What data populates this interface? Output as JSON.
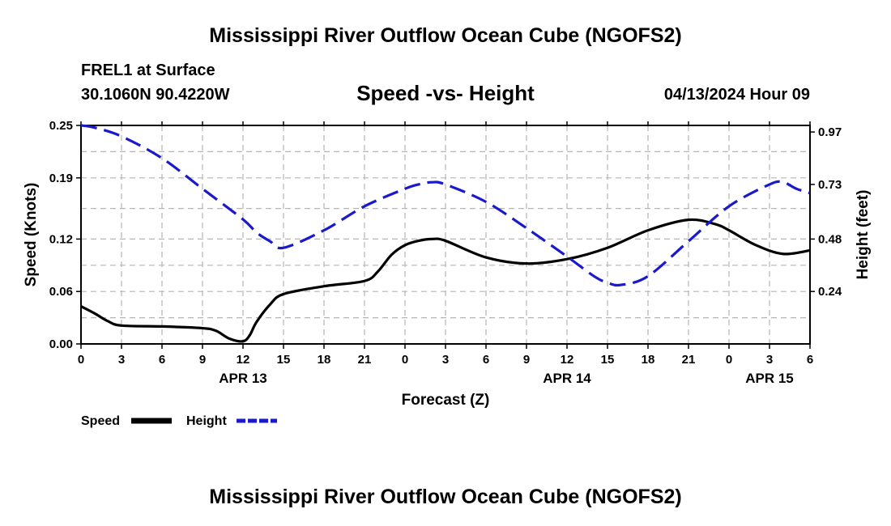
{
  "header": {
    "title": "Mississippi River Outflow Ocean Cube (NGOFS2)",
    "station": "FREL1 at Surface",
    "coords": "30.1060N  90.4220W",
    "subtitle": "Speed -vs- Height",
    "datetime": "04/13/2024 Hour 09"
  },
  "footer": {
    "title": "Mississippi River Outflow Ocean Cube (NGOFS2)"
  },
  "chart_data": {
    "type": "line",
    "xlabel": "Forecast (Z)",
    "ylabel_left": "Speed (Knots)",
    "ylabel_right": "Height (feet)",
    "x_hours_range": [
      0,
      54
    ],
    "x_ticks": [
      {
        "h": 0,
        "label": "0"
      },
      {
        "h": 3,
        "label": "3"
      },
      {
        "h": 6,
        "label": "6"
      },
      {
        "h": 9,
        "label": "9"
      },
      {
        "h": 12,
        "label": "12"
      },
      {
        "h": 15,
        "label": "15"
      },
      {
        "h": 18,
        "label": "18"
      },
      {
        "h": 21,
        "label": "21"
      },
      {
        "h": 24,
        "label": "0"
      },
      {
        "h": 27,
        "label": "3"
      },
      {
        "h": 30,
        "label": "6"
      },
      {
        "h": 33,
        "label": "9"
      },
      {
        "h": 36,
        "label": "12"
      },
      {
        "h": 39,
        "label": "15"
      },
      {
        "h": 42,
        "label": "18"
      },
      {
        "h": 45,
        "label": "21"
      },
      {
        "h": 48,
        "label": "0"
      },
      {
        "h": 51,
        "label": "3"
      },
      {
        "h": 54,
        "label": "6"
      }
    ],
    "date_labels": [
      {
        "h": 12,
        "label": "APR 13"
      },
      {
        "h": 36,
        "label": "APR 14"
      },
      {
        "h": 51,
        "label": "APR 15"
      }
    ],
    "y_left": {
      "range": [
        0.0,
        0.25
      ],
      "ticks": [
        0.0,
        0.06,
        0.12,
        0.19,
        0.25
      ],
      "tick_labels": [
        "0.00",
        "0.06",
        "0.12",
        "0.19",
        "0.25"
      ]
    },
    "y_right": {
      "range": [
        0.0,
        1.0
      ],
      "ticks": [
        0.24,
        0.48,
        0.73,
        0.97
      ],
      "tick_labels": [
        "0.24",
        "0.48",
        "0.73",
        "0.97"
      ]
    },
    "grid": true,
    "legend_position": "bottom-left",
    "series": [
      {
        "name": "Speed",
        "axis": "left",
        "color": "#000000",
        "style": "solid",
        "x": [
          0,
          1,
          2,
          3,
          6,
          9,
          10,
          11,
          12,
          12.5,
          13,
          14,
          15,
          18,
          21,
          22,
          23,
          24,
          25,
          26,
          27,
          30,
          33,
          36,
          39,
          42,
          45,
          47,
          48,
          50,
          52,
          54
        ],
        "y": [
          0.043,
          0.035,
          0.026,
          0.021,
          0.02,
          0.018,
          0.015,
          0.006,
          0.003,
          0.01,
          0.025,
          0.045,
          0.057,
          0.066,
          0.072,
          0.083,
          0.102,
          0.113,
          0.118,
          0.12,
          0.118,
          0.099,
          0.092,
          0.097,
          0.11,
          0.13,
          0.142,
          0.137,
          0.13,
          0.113,
          0.103,
          0.107
        ]
      },
      {
        "name": "Height",
        "axis": "right",
        "color": "#1a1acc",
        "style": "dashed",
        "x": [
          0,
          1,
          3,
          6,
          9,
          12,
          13,
          14,
          15,
          18,
          21,
          24,
          25,
          26,
          27,
          30,
          33,
          36,
          38,
          39,
          40,
          42,
          45,
          48,
          51,
          52,
          53,
          54
        ],
        "y": [
          1.0,
          0.99,
          0.95,
          0.85,
          0.71,
          0.57,
          0.51,
          0.47,
          0.44,
          0.52,
          0.63,
          0.71,
          0.73,
          0.74,
          0.73,
          0.65,
          0.53,
          0.4,
          0.31,
          0.28,
          0.27,
          0.31,
          0.47,
          0.63,
          0.73,
          0.74,
          0.71,
          0.69
        ]
      }
    ]
  }
}
